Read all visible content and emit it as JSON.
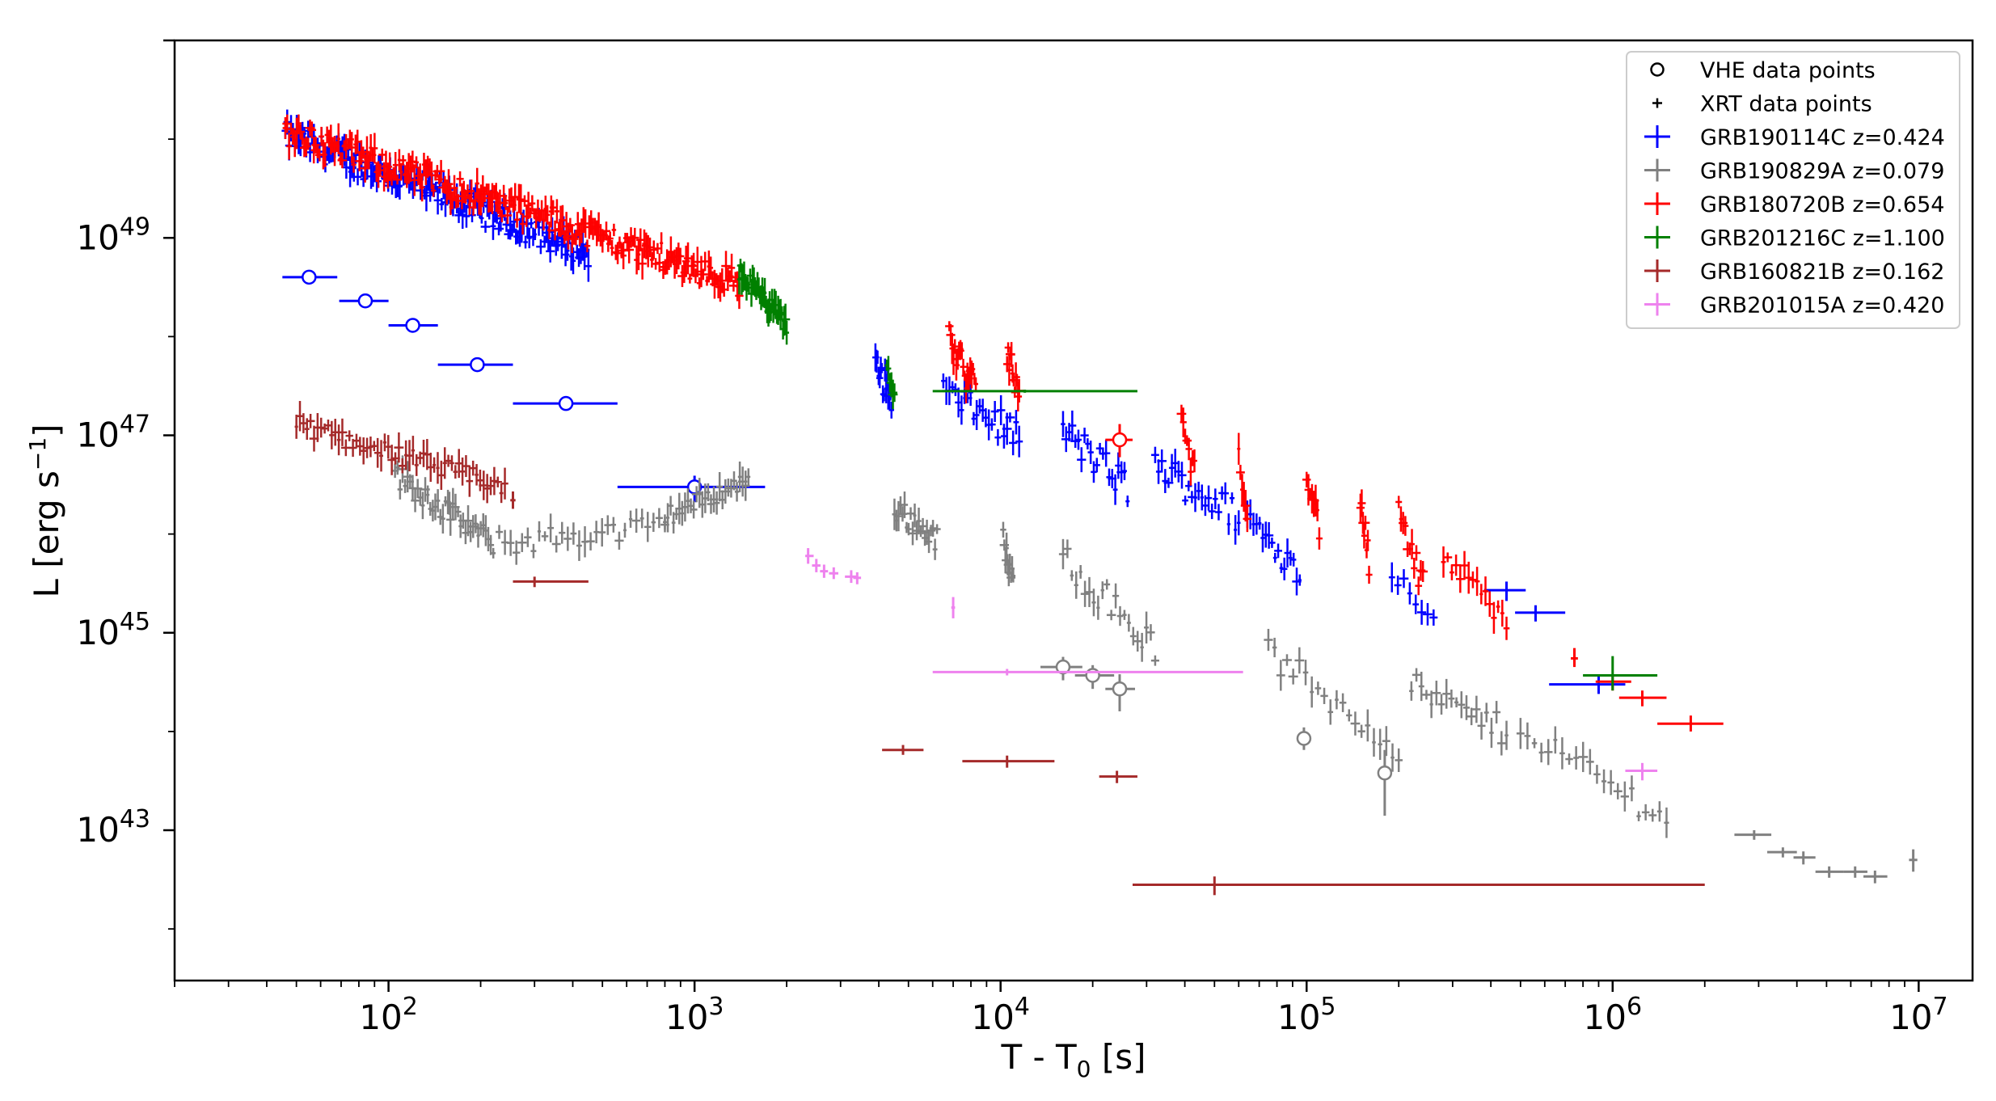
{
  "chart_data": {
    "type": "scatter",
    "title": "",
    "xlabel": "T - T₀ [s]",
    "xlabel_main": "T - T",
    "xlabel_sub": "0",
    "xlabel_tail": " [s]",
    "ylabel": "L [erg s⁻¹]",
    "ylabel_main": "L [erg s",
    "ylabel_sup": "−1",
    "ylabel_tail": "]",
    "xscale": "log",
    "yscale": "log",
    "xlim": [
      20,
      15000000
    ],
    "ylim": [
      3e+41,
      1e+51
    ],
    "x_ticks": [
      {
        "value": 100,
        "base": "10",
        "exp": "2"
      },
      {
        "value": 1000,
        "base": "10",
        "exp": "3"
      },
      {
        "value": 10000,
        "base": "10",
        "exp": "4"
      },
      {
        "value": 100000,
        "base": "10",
        "exp": "5"
      },
      {
        "value": 1000000,
        "base": "10",
        "exp": "6"
      },
      {
        "value": 10000000,
        "base": "10",
        "exp": "7"
      }
    ],
    "y_ticks": [
      {
        "value": 1e+43,
        "base": "10",
        "exp": "43"
      },
      {
        "value": 1e+45,
        "base": "10",
        "exp": "45"
      },
      {
        "value": 1e+47,
        "base": "10",
        "exp": "47"
      },
      {
        "value": 1e+49,
        "base": "10",
        "exp": "49"
      }
    ],
    "legend_position": "top-right",
    "legend": [
      {
        "label": "VHE data points",
        "marker": "circle",
        "color": "#000000"
      },
      {
        "label": "XRT data points",
        "marker": "plus-small",
        "color": "#000000"
      },
      {
        "label": "GRB190114C z=0.424",
        "marker": "plus",
        "color": "#0000ff"
      },
      {
        "label": "GRB190829A z=0.079",
        "marker": "plus",
        "color": "#808080"
      },
      {
        "label": "GRB180720B z=0.654",
        "marker": "plus",
        "color": "#ff0000"
      },
      {
        "label": "GRB201216C z=1.100",
        "marker": "plus",
        "color": "#008000"
      },
      {
        "label": "GRB160821B z=0.162",
        "marker": "plus",
        "color": "#a52a2a"
      },
      {
        "label": "GRB201015A z=0.420",
        "marker": "plus",
        "color": "#ee82ee"
      }
    ],
    "series": [
      {
        "name": "GRB190114C",
        "color": "#0000ff",
        "vhe": [
          {
            "x": 55,
            "y": 4e+48,
            "xlo": 45,
            "xhi": 68,
            "ylo": 3.6e+48,
            "yhi": 4.4e+48
          },
          {
            "x": 84,
            "y": 2.3e+48,
            "xlo": 69,
            "xhi": 100,
            "ylo": 2.1e+48,
            "yhi": 2.5e+48
          },
          {
            "x": 120,
            "y": 1.3e+48,
            "xlo": 100,
            "xhi": 145,
            "ylo": 1.2e+48,
            "yhi": 1.45e+48
          },
          {
            "x": 195,
            "y": 5.2e+47,
            "xlo": 145,
            "xhi": 255,
            "ylo": 4.6e+47,
            "yhi": 5.8e+47
          },
          {
            "x": 380,
            "y": 2.1e+47,
            "xlo": 255,
            "xhi": 560,
            "ylo": 1.8e+47,
            "yhi": 2.5e+47
          },
          {
            "x": 1000,
            "y": 3e+46,
            "xlo": 560,
            "xhi": 1700,
            "ylo": 2.1e+46,
            "yhi": 3.9e+46
          }
        ],
        "xrt_segments": [
          {
            "t0": 46,
            "t1": 450,
            "l0": 1.1e+50,
            "l1": 7e+48,
            "n": 160,
            "scatter": 0.28
          },
          {
            "t0": 3900,
            "t1": 4400,
            "l0": 5e+47,
            "l1": 2.5e+47,
            "n": 16,
            "scatter": 0.3
          },
          {
            "t0": 6500,
            "t1": 11500,
            "l0": 2.8e+47,
            "l1": 1e+47,
            "n": 26,
            "scatter": 0.3
          },
          {
            "t0": 16000,
            "t1": 26000,
            "l0": 1.1e+47,
            "l1": 3e+46,
            "n": 22,
            "scatter": 0.35
          },
          {
            "t0": 32000,
            "t1": 60000,
            "l0": 5e+46,
            "l1": 1.5e+46,
            "n": 26,
            "scatter": 0.35
          },
          {
            "t0": 64000,
            "t1": 95000,
            "l0": 1.5e+46,
            "l1": 4e+45,
            "n": 18,
            "scatter": 0.3
          },
          {
            "t0": 190000,
            "t1": 260000,
            "l0": 4e+45,
            "l1": 1.5e+45,
            "n": 8,
            "scatter": 0.2
          }
        ],
        "xrt_points": [
          {
            "x": 450000,
            "y": 2.7e+45,
            "xlo": 380000,
            "xhi": 520000,
            "ylo": 2.1e+45,
            "yhi": 3.3e+45
          },
          {
            "x": 560000,
            "y": 1.6e+45,
            "xlo": 480000,
            "xhi": 700000,
            "ylo": 1.3e+45,
            "yhi": 1.9e+45
          },
          {
            "x": 900000,
            "y": 3e+44,
            "xlo": 620000,
            "xhi": 1100000,
            "ylo": 2.4e+44,
            "yhi": 3.6e+44
          }
        ]
      },
      {
        "name": "GRB190829A",
        "color": "#808080",
        "vhe": [
          {
            "x": 16000,
            "y": 4.5e+44,
            "xlo": 13500,
            "xhi": 18500,
            "ylo": 3.3e+44,
            "yhi": 5.7e+44
          },
          {
            "x": 20000,
            "y": 3.7e+44,
            "xlo": 17500,
            "xhi": 23500,
            "ylo": 2.7e+44,
            "yhi": 4.7e+44
          },
          {
            "x": 24500,
            "y": 2.7e+44,
            "xlo": 22000,
            "xhi": 27500,
            "ylo": 1.6e+44,
            "yhi": 3.8e+44
          },
          {
            "x": 98000,
            "y": 8.5e+43,
            "xlo": 93000,
            "xhi": 103000,
            "ylo": 6.5e+43,
            "yhi": 1.1e+44
          },
          {
            "x": 180000,
            "y": 3.8e+43,
            "xlo": 175000,
            "xhi": 185000,
            "ylo": 1.4e+43,
            "yhi": 6.5e+43
          }
        ],
        "xrt_segments": [
          {
            "t0": 250,
            "t1": 100,
            "l0": 1.4e+46,
            "l1": 3e+46,
            "n": 1,
            "scatter": 0.0
          },
          {
            "t0": 105,
            "t1": 220,
            "l0": 4e+46,
            "l1": 8e+45,
            "n": 40,
            "scatter": 0.25
          },
          {
            "t0": 230,
            "t1": 800,
            "l0": 8e+45,
            "l1": 1.2e+46,
            "n": 30,
            "scatter": 0.25
          },
          {
            "t0": 800,
            "t1": 1500,
            "l0": 1.5e+46,
            "l1": 3.5e+46,
            "n": 30,
            "scatter": 0.2
          },
          {
            "t0": 4500,
            "t1": 6200,
            "l0": 1.8e+46,
            "l1": 9e+45,
            "n": 22,
            "scatter": 0.25
          },
          {
            "t0": 10200,
            "t1": 11000,
            "l0": 8e+45,
            "l1": 3e+45,
            "n": 10,
            "scatter": 0.3
          },
          {
            "t0": 16000,
            "t1": 32000,
            "l0": 6e+45,
            "l1": 7e+44,
            "n": 22,
            "scatter": 0.35
          },
          {
            "t0": 75000,
            "t1": 200000,
            "l0": 6e+44,
            "l1": 7e+43,
            "n": 22,
            "scatter": 0.35
          },
          {
            "t0": 220000,
            "t1": 450000,
            "l0": 2.8e+44,
            "l1": 1e+44,
            "n": 20,
            "scatter": 0.3
          },
          {
            "t0": 500000,
            "t1": 1500000,
            "l0": 1.1e+44,
            "l1": 1.3e+43,
            "n": 22,
            "scatter": 0.3
          }
        ],
        "xrt_points": [
          {
            "x": 2900000,
            "y": 9e+42,
            "xlo": 2500000,
            "xhi": 3300000,
            "ylo": 8e+42,
            "yhi": 1e+43
          },
          {
            "x": 3600000,
            "y": 6e+42,
            "xlo": 3200000,
            "xhi": 4000000,
            "ylo": 5.3e+42,
            "yhi": 6.7e+42
          },
          {
            "x": 4200000,
            "y": 5.3e+42,
            "xlo": 3900000,
            "xhi": 4600000,
            "ylo": 4.5e+42,
            "yhi": 6.1e+42
          },
          {
            "x": 5100000,
            "y": 3.8e+42,
            "xlo": 4600000,
            "xhi": 5700000,
            "ylo": 3.3e+42,
            "yhi": 4.3e+42
          },
          {
            "x": 6200000,
            "y": 3.8e+42,
            "xlo": 5700000,
            "xhi": 6800000,
            "ylo": 3.3e+42,
            "yhi": 4.3e+42
          },
          {
            "x": 7200000,
            "y": 3.4e+42,
            "xlo": 6600000,
            "xhi": 7900000,
            "ylo": 2.9e+42,
            "yhi": 3.9e+42
          },
          {
            "x": 9600000,
            "y": 5e+42,
            "xlo": 9300000,
            "xhi": 9900000,
            "ylo": 3.8e+42,
            "yhi": 6.4e+42
          }
        ]
      },
      {
        "name": "GRB180720B",
        "color": "#ff0000",
        "vhe": [
          {
            "x": 24500,
            "y": 9e+46,
            "xlo": 22000,
            "xhi": 27000,
            "ylo": 6e+46,
            "yhi": 1.3e+47
          }
        ],
        "xrt_segments": [
          {
            "t0": 46,
            "t1": 1400,
            "l0": 1.2e+50,
            "l1": 3.5e+48,
            "n": 240,
            "scatter": 0.28
          },
          {
            "t0": 6800,
            "t1": 8300,
            "l0": 9e+47,
            "l1": 2.8e+47,
            "n": 20,
            "scatter": 0.35
          },
          {
            "t0": 10500,
            "t1": 11500,
            "l0": 7e+47,
            "l1": 2.5e+47,
            "n": 12,
            "scatter": 0.3
          },
          {
            "t0": 39000,
            "t1": 43000,
            "l0": 1.4e+47,
            "l1": 4e+46,
            "n": 8,
            "scatter": 0.3
          },
          {
            "t0": 60000,
            "t1": 64000,
            "l0": 6e+46,
            "l1": 2e+46,
            "n": 6,
            "scatter": 0.3
          },
          {
            "t0": 100000,
            "t1": 110000,
            "l0": 4e+46,
            "l1": 1.2e+46,
            "n": 8,
            "scatter": 0.3
          },
          {
            "t0": 150000,
            "t1": 160000,
            "l0": 2.2e+46,
            "l1": 5e+45,
            "n": 8,
            "scatter": 0.3
          },
          {
            "t0": 200000,
            "t1": 240000,
            "l0": 1.5e+46,
            "l1": 3e+45,
            "n": 12,
            "scatter": 0.3
          },
          {
            "t0": 280000,
            "t1": 450000,
            "l0": 6e+45,
            "l1": 1.2e+45,
            "n": 16,
            "scatter": 0.3
          }
        ],
        "xrt_points": [
          {
            "x": 750000,
            "y": 5.5e+44,
            "xlo": 730000,
            "xhi": 770000,
            "ylo": 4.5e+44,
            "yhi": 7e+44
          },
          {
            "x": 1000000,
            "y": 3.2e+44,
            "xlo": 880000,
            "xhi": 1150000,
            "ylo": 2.6e+44,
            "yhi": 3.8e+44
          },
          {
            "x": 1250000,
            "y": 2.2e+44,
            "xlo": 1050000,
            "xhi": 1500000,
            "ylo": 1.8e+44,
            "yhi": 2.6e+44
          },
          {
            "x": 1800000,
            "y": 1.2e+44,
            "xlo": 1400000,
            "xhi": 2300000,
            "ylo": 1e+44,
            "yhi": 1.45e+44
          }
        ]
      },
      {
        "name": "GRB201216C",
        "color": "#008000",
        "vhe": [],
        "xrt_segments": [
          {
            "t0": 1400,
            "t1": 2000,
            "l0": 4.5e+48,
            "l1": 1.3e+48,
            "n": 40,
            "scatter": 0.2
          },
          {
            "t0": 4250,
            "t1": 4500,
            "l0": 5e+47,
            "l1": 2.5e+47,
            "n": 6,
            "scatter": 0.2
          }
        ],
        "xrt_points": [
          {
            "x": 12000,
            "y": 2.8e+47,
            "xlo": 6000,
            "xhi": 28000,
            "ylo": 2.7e+47,
            "yhi": 2.9e+47
          },
          {
            "x": 1000000,
            "y": 3.7e+44,
            "xlo": 800000,
            "xhi": 1400000,
            "ylo": 2.6e+44,
            "yhi": 5.8e+44
          }
        ]
      },
      {
        "name": "GRB160821B",
        "color": "#a52a2a",
        "vhe": [],
        "xrt_segments": [
          {
            "t0": 50,
            "t1": 240,
            "l0": 1.3e+47,
            "l1": 3e+46,
            "n": 60,
            "scatter": 0.2
          }
        ],
        "xrt_points": [
          {
            "x": 255,
            "y": 2.2e+46,
            "xlo": 250,
            "xhi": 260,
            "ylo": 1.8e+46,
            "yhi": 2.7e+46
          },
          {
            "x": 300,
            "y": 3.3e+45,
            "xlo": 255,
            "xhi": 450,
            "ylo": 2.9e+45,
            "yhi": 3.7e+45
          },
          {
            "x": 4800,
            "y": 6.5e+43,
            "xlo": 4100,
            "xhi": 5600,
            "ylo": 5.8e+43,
            "yhi": 7.3e+43
          },
          {
            "x": 10500,
            "y": 5e+43,
            "xlo": 7500,
            "xhi": 15000,
            "ylo": 4.3e+43,
            "yhi": 5.7e+43
          },
          {
            "x": 24000,
            "y": 3.5e+43,
            "xlo": 21000,
            "xhi": 28000,
            "ylo": 3e+43,
            "yhi": 4e+43
          },
          {
            "x": 50000,
            "y": 2.8e+42,
            "xlo": 27000,
            "xhi": 2000000,
            "ylo": 2.2e+42,
            "yhi": 3.4e+42
          }
        ]
      },
      {
        "name": "GRB201015A",
        "color": "#ee82ee",
        "vhe": [],
        "xrt_segments": [],
        "xrt_points": [
          {
            "x": 2350,
            "y": 6e+45,
            "xlo": 2300,
            "xhi": 2450,
            "ylo": 5e+45,
            "yhi": 7.2e+45
          },
          {
            "x": 2500,
            "y": 4.8e+45,
            "xlo": 2420,
            "xhi": 2580,
            "ylo": 4.1e+45,
            "yhi": 5.6e+45
          },
          {
            "x": 2650,
            "y": 4.2e+45,
            "xlo": 2570,
            "xhi": 2730,
            "ylo": 3.6e+45,
            "yhi": 4.9e+45
          },
          {
            "x": 2850,
            "y": 4e+45,
            "xlo": 2750,
            "xhi": 2950,
            "ylo": 3.5e+45,
            "yhi": 4.6e+45
          },
          {
            "x": 3250,
            "y": 3.7e+45,
            "xlo": 3100,
            "xhi": 3400,
            "ylo": 3.2e+45,
            "yhi": 4.3e+45
          },
          {
            "x": 3400,
            "y": 3.6e+45,
            "xlo": 3300,
            "xhi": 3500,
            "ylo": 3.1e+45,
            "yhi": 4.1e+45
          },
          {
            "x": 7000,
            "y": 1.8e+45,
            "xlo": 6900,
            "xhi": 7100,
            "ylo": 1.4e+45,
            "yhi": 2.3e+45
          },
          {
            "x": 10500,
            "y": 4e+44,
            "xlo": 6000,
            "xhi": 62000,
            "ylo": 3.7e+44,
            "yhi": 4.3e+44
          },
          {
            "x": 1250000,
            "y": 4e+43,
            "xlo": 1100000,
            "xhi": 1400000,
            "ylo": 3.2e+43,
            "yhi": 4.8e+43
          }
        ]
      }
    ]
  }
}
